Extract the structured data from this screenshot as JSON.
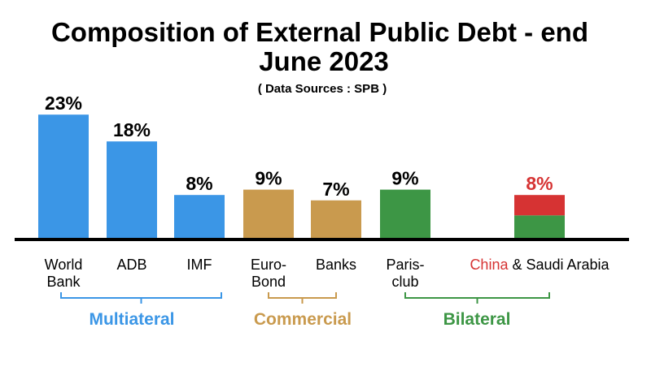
{
  "chart_data": {
    "type": "bar",
    "title_line1": "Composition of External Public Debt - end",
    "title_line2": "June 2023",
    "subtitle": "( Data Sources : SPB )",
    "ylim": [
      0,
      25
    ],
    "grid": false,
    "categories": [
      {
        "lines": [
          "World",
          "Bank"
        ],
        "value": 23,
        "label": "23%",
        "group": "Multiateral",
        "color": "#3b96e6"
      },
      {
        "lines": [
          "ADB"
        ],
        "value": 18,
        "label": "18%",
        "group": "Multiateral",
        "color": "#3b96e6"
      },
      {
        "lines": [
          "IMF"
        ],
        "value": 8,
        "label": "8%",
        "group": "Multiateral",
        "color": "#3b96e6"
      },
      {
        "lines": [
          "Euro-",
          "Bond"
        ],
        "value": 9,
        "label": "9%",
        "group": "Commercial",
        "color": "#c99a4e"
      },
      {
        "lines": [
          "Banks"
        ],
        "value": 7,
        "label": "7%",
        "group": "Commercial",
        "color": "#c99a4e"
      },
      {
        "lines": [
          "Paris-",
          "club"
        ],
        "value": 9,
        "label": "9%",
        "group": "Bilateral",
        "color": "#3d9645"
      },
      {
        "lines": [
          "China & Saudi Arabia"
        ],
        "label_part1": "China",
        "label_part2": " & Saudi Arabia",
        "value": 8,
        "label": "8%",
        "group": "Bilateral",
        "stack": [
          {
            "name": "Saudi Arabia",
            "value": 4.2,
            "color": "#3d9645"
          },
          {
            "name": "China",
            "value": 3.8,
            "color": "#d63333"
          }
        ]
      }
    ],
    "groups": [
      {
        "name": "Multiateral",
        "color": "#3b96e6"
      },
      {
        "name": "Commercial",
        "color": "#c99a4e"
      },
      {
        "name": "Bilateral",
        "color": "#3d9645"
      }
    ],
    "colors": {
      "china_label": "#d63333",
      "axis": "#000000"
    }
  }
}
